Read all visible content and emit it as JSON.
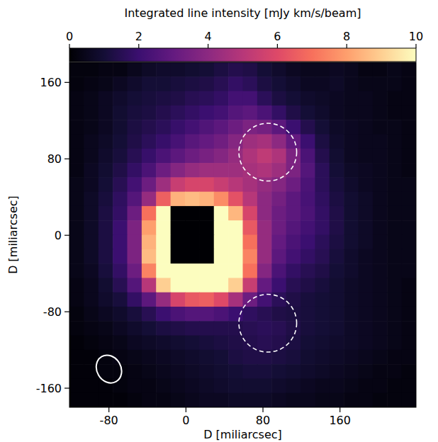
{
  "chart_data": {
    "type": "heatmap",
    "xlabel": "D [miliarcsec]",
    "ylabel": "D [miliarcsec]",
    "xlim": [
      -121,
      239
    ],
    "ylim": [
      -180,
      181
    ],
    "xticks": [
      -80,
      0,
      80,
      160
    ],
    "yticks": [
      -160,
      -80,
      0,
      80,
      160
    ],
    "z": [
      [
        0.2,
        0.2,
        0.3,
        0.3,
        0.5,
        0.7,
        0.8,
        0.8,
        0.9,
        1.0,
        1.2,
        1.4,
        1.3,
        1.0,
        0.8,
        0.6,
        0.5,
        0.5,
        0.6,
        0.5,
        0.3,
        0.3,
        0.4,
        0.3
      ],
      [
        0.2,
        0.3,
        0.4,
        0.6,
        0.8,
        1.0,
        1.0,
        1.1,
        1.2,
        1.3,
        1.5,
        1.8,
        1.6,
        1.2,
        1.0,
        0.8,
        0.6,
        0.6,
        0.7,
        0.5,
        0.4,
        0.4,
        0.4,
        0.3
      ],
      [
        0.3,
        0.4,
        0.6,
        0.8,
        1.0,
        1.1,
        1.2,
        1.3,
        1.5,
        1.6,
        1.8,
        2.2,
        2.2,
        1.6,
        1.2,
        1.0,
        0.8,
        0.7,
        0.6,
        0.5,
        0.5,
        0.4,
        0.3,
        0.3
      ],
      [
        0.3,
        0.4,
        0.6,
        0.9,
        1.1,
        1.2,
        1.4,
        1.6,
        1.8,
        2.0,
        2.2,
        2.6,
        2.8,
        2.4,
        1.8,
        1.3,
        1.0,
        0.8,
        0.6,
        0.5,
        0.5,
        0.4,
        0.3,
        0.3
      ],
      [
        0.3,
        0.4,
        0.6,
        0.9,
        1.2,
        1.4,
        1.6,
        1.9,
        2.2,
        2.5,
        2.8,
        3.2,
        3.6,
        3.4,
        2.8,
        2.0,
        1.4,
        1.0,
        0.7,
        0.6,
        0.5,
        0.4,
        0.4,
        0.3
      ],
      [
        0.3,
        0.5,
        0.7,
        1.0,
        1.3,
        1.6,
        1.9,
        2.3,
        2.7,
        3.0,
        3.3,
        3.8,
        4.4,
        4.6,
        4.0,
        3.0,
        2.0,
        1.2,
        0.8,
        0.6,
        0.5,
        0.5,
        0.4,
        0.3
      ],
      [
        0.3,
        0.5,
        0.8,
        1.1,
        1.5,
        1.9,
        2.4,
        2.8,
        3.2,
        3.5,
        3.8,
        4.2,
        4.8,
        5.2,
        4.8,
        3.6,
        2.4,
        1.4,
        0.9,
        0.6,
        0.5,
        0.5,
        0.4,
        0.3
      ],
      [
        0.3,
        0.6,
        0.9,
        1.3,
        1.8,
        2.4,
        3.2,
        3.8,
        4.2,
        4.4,
        4.4,
        4.4,
        4.6,
        4.8,
        4.4,
        3.6,
        2.6,
        1.6,
        1.0,
        0.7,
        0.6,
        0.5,
        0.4,
        0.3
      ],
      [
        0.4,
        0.6,
        1.0,
        1.5,
        2.2,
        3.2,
        4.4,
        5.4,
        5.8,
        5.8,
        5.4,
        5.0,
        4.6,
        4.2,
        3.8,
        3.2,
        2.4,
        1.6,
        1.1,
        0.8,
        0.6,
        0.5,
        0.4,
        0.4
      ],
      [
        0.4,
        0.7,
        1.1,
        1.7,
        2.6,
        4.2,
        6.6,
        8.4,
        8.6,
        8.4,
        7.6,
        6.2,
        5.0,
        4.0,
        3.4,
        2.8,
        2.3,
        1.7,
        1.2,
        0.9,
        0.7,
        0.5,
        0.4,
        0.4
      ],
      [
        0.4,
        0.7,
        1.2,
        1.8,
        3.2,
        7.0,
        10,
        0,
        0,
        0,
        10,
        8.5,
        5.8,
        4.0,
        3.2,
        2.8,
        2.4,
        1.8,
        1.3,
        0.9,
        0.7,
        0.5,
        0.4,
        0.4
      ],
      [
        0.4,
        0.7,
        1.2,
        2.0,
        3.6,
        8.0,
        10,
        0,
        0,
        0,
        10,
        10,
        6.4,
        4.2,
        3.2,
        2.6,
        2.2,
        1.8,
        1.3,
        0.9,
        0.7,
        0.5,
        0.4,
        0.4
      ],
      [
        0.4,
        0.7,
        1.2,
        2.0,
        3.6,
        8.4,
        10,
        0,
        0,
        0,
        10,
        10,
        7.0,
        4.2,
        3.0,
        2.4,
        2.0,
        1.6,
        1.2,
        0.9,
        0.7,
        0.5,
        0.4,
        0.4
      ],
      [
        0.4,
        0.7,
        1.2,
        2.0,
        3.6,
        8.6,
        10,
        0,
        0,
        0,
        10,
        10,
        7.4,
        4.2,
        2.8,
        2.2,
        1.8,
        1.5,
        1.1,
        0.8,
        0.6,
        0.5,
        0.4,
        0.4
      ],
      [
        0.4,
        0.6,
        1.1,
        1.8,
        3.2,
        7.4,
        10,
        10,
        10,
        10,
        10,
        10,
        7.0,
        3.8,
        2.4,
        1.8,
        1.5,
        1.3,
        1.0,
        0.8,
        0.6,
        0.5,
        0.4,
        0.4
      ],
      [
        0.3,
        0.5,
        0.9,
        1.5,
        2.6,
        5.0,
        9.0,
        10,
        10,
        10,
        10,
        9.0,
        5.4,
        3.0,
        2.0,
        1.5,
        1.3,
        1.1,
        0.9,
        0.7,
        0.6,
        0.5,
        0.4,
        0.3
      ],
      [
        0.3,
        0.5,
        0.8,
        1.1,
        1.8,
        2.8,
        4.2,
        5.8,
        6.4,
        6.6,
        6.0,
        4.6,
        3.2,
        2.2,
        1.6,
        1.3,
        1.1,
        1.0,
        0.9,
        0.7,
        0.6,
        0.5,
        0.4,
        0.3
      ],
      [
        0.2,
        0.4,
        0.6,
        0.8,
        1.1,
        1.5,
        2.0,
        2.4,
        2.6,
        2.6,
        2.4,
        2.0,
        1.7,
        1.5,
        1.3,
        1.2,
        1.1,
        1.0,
        0.9,
        0.7,
        0.6,
        0.5,
        0.4,
        0.3
      ],
      [
        0.2,
        0.3,
        0.4,
        0.6,
        0.8,
        1.0,
        1.2,
        1.3,
        1.4,
        1.4,
        1.4,
        1.4,
        1.5,
        1.6,
        1.5,
        1.3,
        1.1,
        1.0,
        0.9,
        0.7,
        0.6,
        0.5,
        0.4,
        0.3
      ],
      [
        0.1,
        0.2,
        0.3,
        0.4,
        0.6,
        0.7,
        0.8,
        0.9,
        1.0,
        1.1,
        1.2,
        1.3,
        1.4,
        1.5,
        1.4,
        1.2,
        1.0,
        0.9,
        0.8,
        0.7,
        0.6,
        0.5,
        0.4,
        0.3
      ],
      [
        0.1,
        0.1,
        0.2,
        0.3,
        0.4,
        0.5,
        0.6,
        0.7,
        0.8,
        0.9,
        1.0,
        1.2,
        1.3,
        1.3,
        1.2,
        1.1,
        0.9,
        0.8,
        0.7,
        0.6,
        0.5,
        0.4,
        0.3,
        0.3
      ],
      [
        0.1,
        0.1,
        0.2,
        0.2,
        0.3,
        0.4,
        0.5,
        0.6,
        0.7,
        0.8,
        0.9,
        1.0,
        1.1,
        1.1,
        1.0,
        0.9,
        0.8,
        0.7,
        0.6,
        0.5,
        0.4,
        0.3,
        0.3,
        0.2
      ],
      [
        0.1,
        0.1,
        0.1,
        0.2,
        0.3,
        0.3,
        0.4,
        0.5,
        0.6,
        0.7,
        0.8,
        0.9,
        0.9,
        0.9,
        0.8,
        0.7,
        0.6,
        0.5,
        0.5,
        0.4,
        0.3,
        0.3,
        0.2,
        0.2
      ],
      [
        0.1,
        0.1,
        0.1,
        0.1,
        0.2,
        0.3,
        0.3,
        0.4,
        0.5,
        0.6,
        0.6,
        0.7,
        0.7,
        0.7,
        0.6,
        0.5,
        0.5,
        0.4,
        0.4,
        0.3,
        0.3,
        0.2,
        0.2,
        0.2
      ]
    ],
    "colorbar": {
      "label": "Integrated line intensity [mJy km/s/beam]",
      "range": [
        0,
        10
      ],
      "ticks": [
        0,
        2,
        4,
        6,
        8,
        10
      ]
    },
    "apertures": [
      {
        "x": 85,
        "y": 87,
        "r": 30
      },
      {
        "x": 85,
        "y": -92,
        "r": 30
      }
    ],
    "beam": {
      "x": -80,
      "y": -140,
      "major": 30,
      "minor": 25
    }
  }
}
